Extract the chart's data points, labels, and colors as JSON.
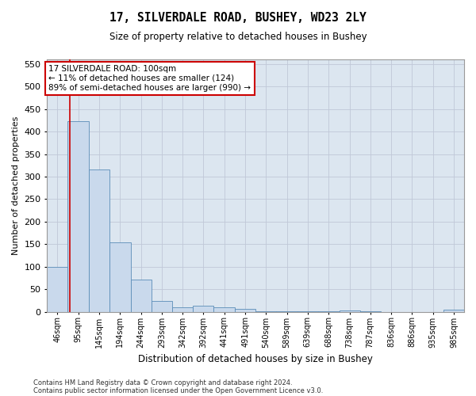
{
  "title": "17, SILVERDALE ROAD, BUSHEY, WD23 2LY",
  "subtitle": "Size of property relative to detached houses in Bushey",
  "xlabel": "Distribution of detached houses by size in Bushey",
  "ylabel": "Number of detached properties",
  "footer_line1": "Contains HM Land Registry data © Crown copyright and database right 2024.",
  "footer_line2": "Contains public sector information licensed under the Open Government Licence v3.0.",
  "bar_color": "#c9d9ec",
  "bar_edge_color": "#5b8db8",
  "grid_color": "#c0c8d8",
  "background_color": "#dce6f0",
  "annotation_box_color": "#cc0000",
  "annotation_text": "17 SILVERDALE ROAD: 100sqm\n← 11% of detached houses are smaller (124)\n89% of semi-detached houses are larger (990) →",
  "red_line_x": 100,
  "bin_edges": [
    46,
    95,
    145,
    194,
    244,
    293,
    342,
    392,
    441,
    491,
    540,
    589,
    639,
    688,
    738,
    787,
    836,
    886,
    935,
    985,
    1034
  ],
  "bar_heights": [
    100,
    423,
    315,
    155,
    72,
    25,
    10,
    13,
    10,
    7,
    2,
    1,
    1,
    1,
    3,
    1,
    0,
    0,
    0,
    5
  ],
  "ylim": [
    0,
    560
  ],
  "yticks": [
    0,
    50,
    100,
    150,
    200,
    250,
    300,
    350,
    400,
    450,
    500,
    550
  ]
}
